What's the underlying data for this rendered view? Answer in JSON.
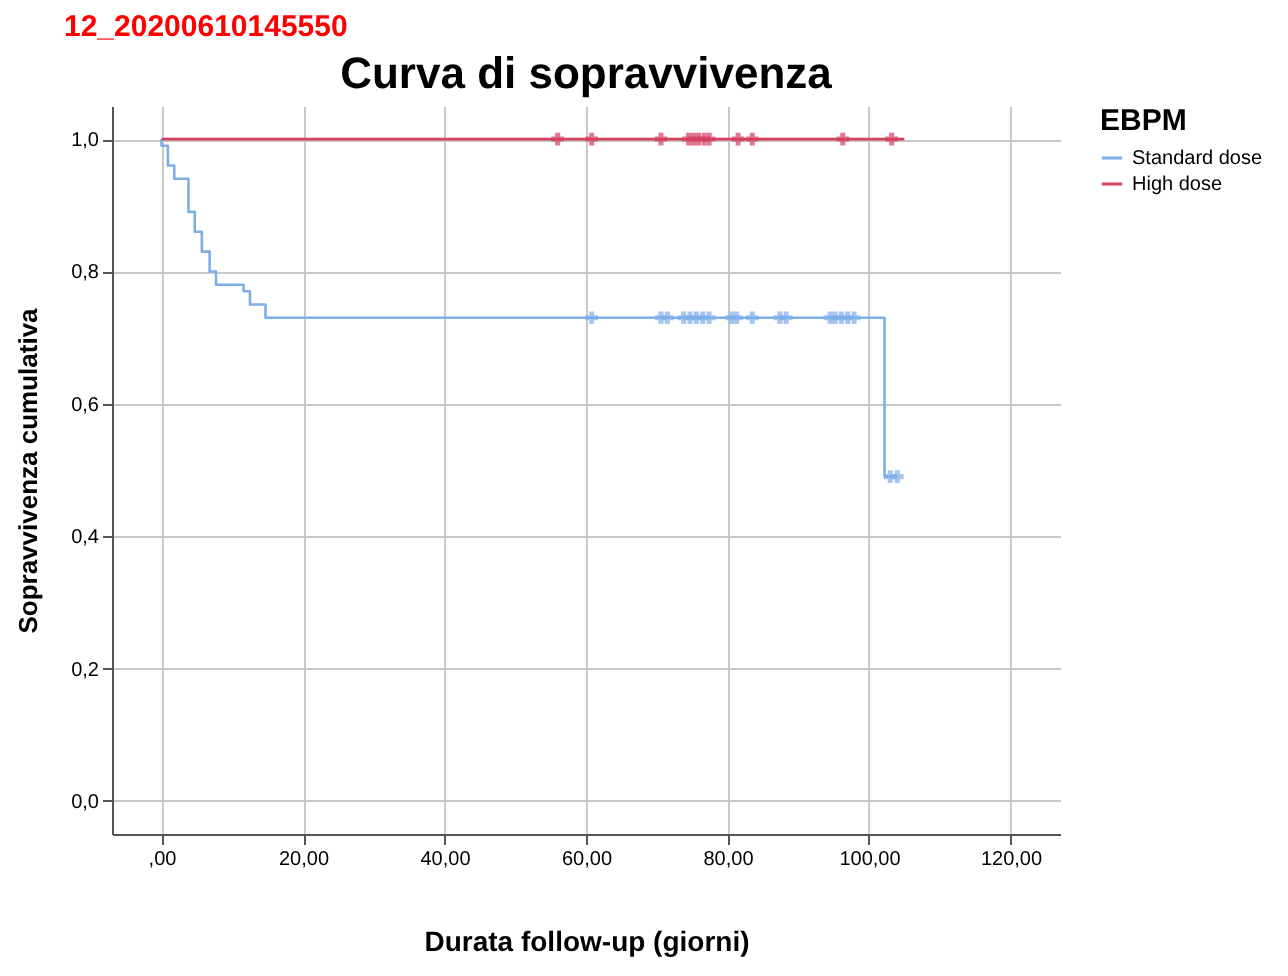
{
  "chart_data": {
    "type": "step",
    "title": "Curva di sopravvivenza",
    "xlabel": "Durata follow-up (giorni)",
    "ylabel": "Sopravvivenza cumulativa",
    "legend_title": "EBPM",
    "legend": "right",
    "grid": true,
    "annotations": [
      "12_20200610145550"
    ],
    "xlim": [
      -7,
      127
    ],
    "ylim": [
      -0.05,
      1.05
    ],
    "xticks": [
      {
        "value": 0,
        "label": ",00"
      },
      {
        "value": 20,
        "label": "20,00"
      },
      {
        "value": 40,
        "label": "40,00"
      },
      {
        "value": 60,
        "label": "60,00"
      },
      {
        "value": 80,
        "label": "80,00"
      },
      {
        "value": 100,
        "label": "100,00"
      },
      {
        "value": 120,
        "label": "120,00"
      }
    ],
    "yticks": [
      {
        "value": 0,
        "label": "0,0"
      },
      {
        "value": 0.2,
        "label": "0,2"
      },
      {
        "value": 0.4,
        "label": "0,4"
      },
      {
        "value": 0.6,
        "label": "0,6"
      },
      {
        "value": 0.8,
        "label": "0,8"
      },
      {
        "value": 1,
        "label": "1,0"
      }
    ],
    "series": [
      {
        "name": "Standard dose",
        "color": "#7eaee8",
        "x": [
          0,
          0,
          0.9,
          1.8,
          3.8,
          4.7,
          5.7,
          6.8,
          7.7,
          11.6,
          12.5,
          14.7,
          102.2,
          104
        ],
        "values": [
          1,
          0.99,
          0.96,
          0.94,
          0.89,
          0.86,
          0.83,
          0.8,
          0.78,
          0.77,
          0.75,
          0.73,
          0.49,
          0.49
        ]
      },
      {
        "name": "High dose",
        "color": "#d43f5f",
        "x": [
          0,
          105
        ],
        "values": [
          1,
          1
        ]
      },
      {
        "type": "scatter",
        "marker": "cross",
        "color": "#7eaee8",
        "x": [
          60.8,
          70.6,
          71.5,
          73.8,
          74.7,
          75.6,
          76.5,
          77.4,
          80.6,
          81.3,
          83.5,
          87.4,
          88.3,
          94.5,
          95.2,
          96.1,
          97,
          97.9,
          103,
          104
        ],
        "values": [
          0.73,
          0.73,
          0.73,
          0.73,
          0.73,
          0.73,
          0.73,
          0.73,
          0.73,
          0.73,
          0.73,
          0.73,
          0.73,
          0.73,
          0.73,
          0.73,
          0.73,
          0.73,
          0.49,
          0.49
        ]
      },
      {
        "type": "scatter",
        "marker": "cross",
        "color": "#d43f5f",
        "x": [
          56,
          60.8,
          70.6,
          74.5,
          75.2,
          75.9,
          76.7,
          77.4,
          81.5,
          83.5,
          96.3,
          103.2
        ],
        "values": [
          1,
          1,
          1,
          1,
          1,
          1,
          1,
          1,
          1,
          1,
          1,
          1
        ]
      }
    ]
  }
}
